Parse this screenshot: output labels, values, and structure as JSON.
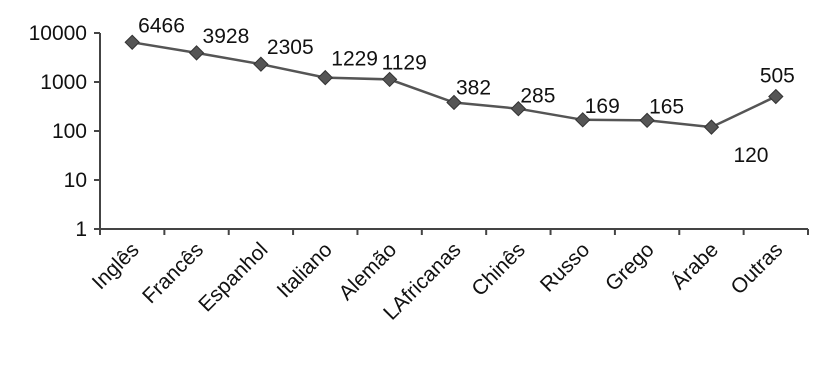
{
  "chart_data": {
    "type": "line",
    "title": "",
    "xlabel": "",
    "ylabel": "",
    "y_scale": "log",
    "ylim": [
      1,
      10000
    ],
    "y_ticks": [
      "1",
      "10",
      "100",
      "1000",
      "10000"
    ],
    "grid": false,
    "legend": "none",
    "line_color": "#555555",
    "marker": "diamond",
    "categories": [
      "Inglês",
      "Francês",
      "Espanhol",
      "Italiano",
      "Alemão",
      "LAfricanas",
      "Chinês",
      "Russo",
      "Grego",
      "Árabe",
      "Outras"
    ],
    "values": [
      6466,
      3928,
      2305,
      1229,
      1129,
      382,
      285,
      169,
      165,
      120,
      505
    ],
    "data_labels": [
      "6466",
      "3928",
      "2305",
      "1229",
      "1129",
      "382",
      "285",
      "169",
      "165",
      "120",
      "505"
    ]
  }
}
